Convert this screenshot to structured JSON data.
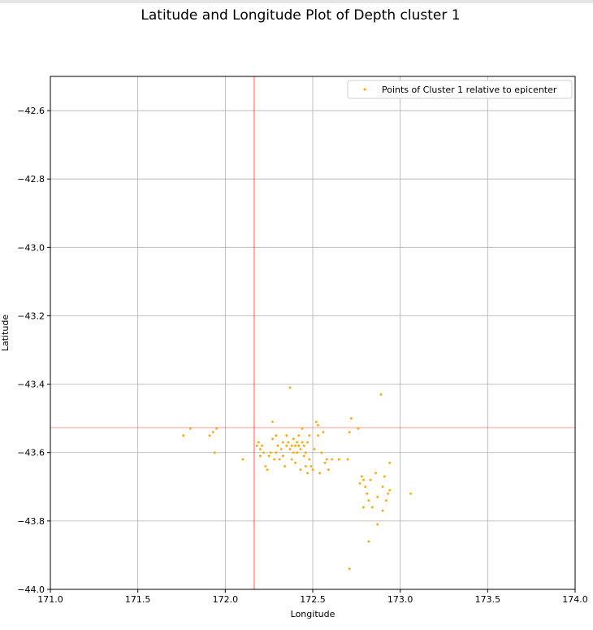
{
  "chart_data": {
    "type": "scatter",
    "title": "Latitude and Longitude Plot of Depth cluster 1",
    "xlabel": "Longitude",
    "ylabel": "Latitude",
    "xlim": [
      171.0,
      174.0
    ],
    "ylim": [
      -44.0,
      -42.5
    ],
    "xticks": [
      171.0,
      171.5,
      172.0,
      172.5,
      173.0,
      173.5,
      174.0
    ],
    "xtick_labels": [
      "171.0",
      "171.5",
      "172.0",
      "172.5",
      "173.0",
      "173.5",
      "174.0"
    ],
    "yticks": [
      -42.6,
      -42.8,
      -43.0,
      -43.2,
      -43.4,
      -43.6,
      -43.8,
      -44.0
    ],
    "ytick_labels": [
      "−42.6",
      "−42.8",
      "−43.0",
      "−43.2",
      "−43.4",
      "−43.6",
      "−43.8",
      "−44.0"
    ],
    "grid": true,
    "legend_position": "top-right",
    "series": [
      {
        "name": "Points of Cluster 1 relative to epicenter",
        "color": "#FFA500",
        "points": [
          [
            171.76,
            -43.55
          ],
          [
            171.8,
            -43.53
          ],
          [
            171.91,
            -43.55
          ],
          [
            171.93,
            -43.54
          ],
          [
            171.95,
            -43.53
          ],
          [
            171.94,
            -43.6
          ],
          [
            172.1,
            -43.62
          ],
          [
            172.18,
            -43.58
          ],
          [
            172.19,
            -43.57
          ],
          [
            172.2,
            -43.59
          ],
          [
            172.2,
            -43.61
          ],
          [
            172.21,
            -43.58
          ],
          [
            172.22,
            -43.6
          ],
          [
            172.23,
            -43.64
          ],
          [
            172.24,
            -43.65
          ],
          [
            172.25,
            -43.61
          ],
          [
            172.26,
            -43.6
          ],
          [
            172.27,
            -43.56
          ],
          [
            172.27,
            -43.51
          ],
          [
            172.28,
            -43.62
          ],
          [
            172.29,
            -43.55
          ],
          [
            172.29,
            -43.6
          ],
          [
            172.3,
            -43.58
          ],
          [
            172.31,
            -43.62
          ],
          [
            172.32,
            -43.59
          ],
          [
            172.33,
            -43.57
          ],
          [
            172.33,
            -43.61
          ],
          [
            172.34,
            -43.64
          ],
          [
            172.35,
            -43.55
          ],
          [
            172.35,
            -43.58
          ],
          [
            172.36,
            -43.57
          ],
          [
            172.37,
            -43.59
          ],
          [
            172.37,
            -43.41
          ],
          [
            172.38,
            -43.62
          ],
          [
            172.38,
            -43.58
          ],
          [
            172.39,
            -43.6
          ],
          [
            172.39,
            -43.56
          ],
          [
            172.4,
            -43.58
          ],
          [
            172.4,
            -43.63
          ],
          [
            172.41,
            -43.57
          ],
          [
            172.41,
            -43.6
          ],
          [
            172.42,
            -43.58
          ],
          [
            172.42,
            -43.55
          ],
          [
            172.43,
            -43.59
          ],
          [
            172.43,
            -43.65
          ],
          [
            172.44,
            -43.57
          ],
          [
            172.44,
            -43.53
          ],
          [
            172.45,
            -43.61
          ],
          [
            172.45,
            -43.58
          ],
          [
            172.46,
            -43.64
          ],
          [
            172.46,
            -43.6
          ],
          [
            172.47,
            -43.57
          ],
          [
            172.47,
            -43.66
          ],
          [
            172.48,
            -43.62
          ],
          [
            172.48,
            -43.55
          ],
          [
            172.49,
            -43.64
          ],
          [
            172.5,
            -43.65
          ],
          [
            172.51,
            -43.59
          ],
          [
            172.52,
            -43.51
          ],
          [
            172.53,
            -43.52
          ],
          [
            172.53,
            -43.55
          ],
          [
            172.54,
            -43.66
          ],
          [
            172.55,
            -43.6
          ],
          [
            172.56,
            -43.54
          ],
          [
            172.57,
            -43.63
          ],
          [
            172.58,
            -43.62
          ],
          [
            172.59,
            -43.65
          ],
          [
            172.61,
            -43.62
          ],
          [
            172.65,
            -43.62
          ],
          [
            172.7,
            -43.62
          ],
          [
            172.71,
            -43.54
          ],
          [
            172.72,
            -43.5
          ],
          [
            172.71,
            -43.94
          ],
          [
            172.76,
            -43.53
          ],
          [
            172.77,
            -43.69
          ],
          [
            172.78,
            -43.67
          ],
          [
            172.79,
            -43.68
          ],
          [
            172.79,
            -43.76
          ],
          [
            172.8,
            -43.7
          ],
          [
            172.81,
            -43.72
          ],
          [
            172.82,
            -43.74
          ],
          [
            172.82,
            -43.86
          ],
          [
            172.83,
            -43.68
          ],
          [
            172.84,
            -43.76
          ],
          [
            172.86,
            -43.66
          ],
          [
            172.87,
            -43.73
          ],
          [
            172.87,
            -43.81
          ],
          [
            172.89,
            -43.43
          ],
          [
            172.9,
            -43.7
          ],
          [
            172.9,
            -43.77
          ],
          [
            172.91,
            -43.67
          ],
          [
            172.92,
            -43.74
          ],
          [
            172.93,
            -43.72
          ],
          [
            172.94,
            -43.63
          ],
          [
            172.94,
            -43.71
          ],
          [
            173.06,
            -43.72
          ]
        ]
      }
    ],
    "reference_lines": {
      "color": "#FF0000",
      "epicenter_longitude": 172.165,
      "epicenter_latitude": -43.527
    }
  }
}
